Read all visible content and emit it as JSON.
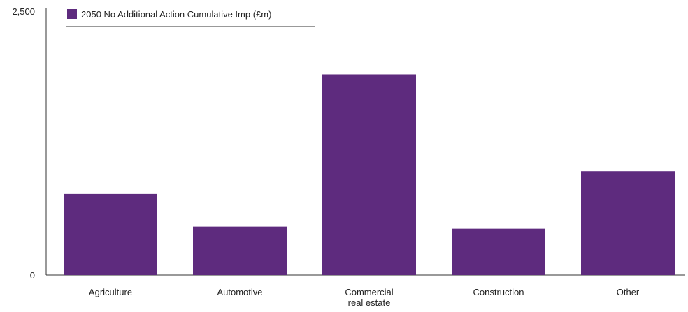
{
  "chart_data": {
    "type": "bar",
    "categories": [
      "Agriculture",
      "Automotive",
      "Commercial real estate",
      "Construction",
      "Other"
    ],
    "category_lines": [
      [
        "Agriculture"
      ],
      [
        "Automotive"
      ],
      [
        "Commercial",
        "real estate"
      ],
      [
        "Construction"
      ],
      [
        "Other"
      ]
    ],
    "series": [
      {
        "name": "2050 No Additional Action Cumulative Imp (£m)",
        "values": [
          770,
          460,
          1900,
          440,
          980
        ],
        "color": "#5e2b7e"
      }
    ],
    "ylim": [
      0,
      2500
    ],
    "y_tick_labels": [
      {
        "value": 0,
        "label": "0"
      },
      {
        "value": 2500,
        "label": "2,500"
      }
    ],
    "legend_position": "top-left",
    "grid": false,
    "xlabel": "",
    "ylabel": ""
  }
}
